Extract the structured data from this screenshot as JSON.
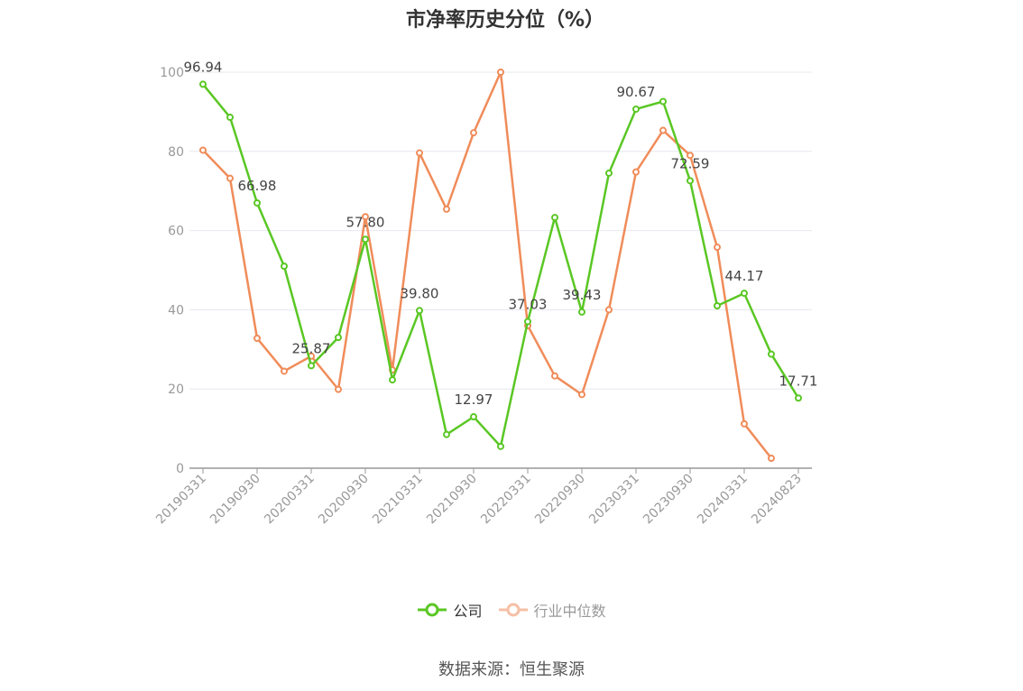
{
  "chart_data": {
    "type": "line",
    "title": "市净率历史分位（%）",
    "ylim": [
      0,
      100
    ],
    "yticks": [
      0,
      20,
      40,
      60,
      80,
      100
    ],
    "x_tick_labels": [
      "20190331",
      "20190930",
      "20200331",
      "20200930",
      "20210331",
      "20210930",
      "20220331",
      "20220930",
      "20230331",
      "20230930",
      "20240331",
      "20240823"
    ],
    "x": [
      "20190331",
      "20190630",
      "20190930",
      "20191231",
      "20200331",
      "20200630",
      "20200930",
      "20201231",
      "20210331",
      "20210630",
      "20210930",
      "20211231",
      "20220331",
      "20220630",
      "20220930",
      "20221231",
      "20230331",
      "20230630",
      "20230930",
      "20231231",
      "20240331",
      "20240630",
      "20240823"
    ],
    "grid": true,
    "legend_position": "bottom",
    "series": [
      {
        "name": "公司",
        "color": "#5ac724",
        "values": [
          96.94,
          88.6,
          66.98,
          51.0,
          25.87,
          33.0,
          57.8,
          22.3,
          39.8,
          8.5,
          12.97,
          5.5,
          37.03,
          63.3,
          39.43,
          74.5,
          90.67,
          92.6,
          72.59,
          41.0,
          44.17,
          28.8,
          17.71
        ],
        "labels": {
          "0": "96.94",
          "2": "66.98",
          "4": "25.87",
          "6": "57.80",
          "8": "39.80",
          "10": "12.97",
          "12": "37.03",
          "14": "39.43",
          "16": "90.67",
          "18": "72.59",
          "20": "44.17",
          "22": "17.71"
        }
      },
      {
        "name": "行业中位数",
        "color": "#f08c5a",
        "values": [
          80.3,
          73.2,
          32.8,
          24.5,
          28.3,
          19.9,
          63.5,
          24.8,
          79.6,
          65.4,
          84.7,
          100.0,
          36.0,
          23.3,
          18.6,
          40.0,
          74.8,
          85.3,
          79.0,
          55.8,
          11.2,
          2.5,
          null
        ]
      }
    ]
  },
  "source": "数据来源：恒生聚源"
}
